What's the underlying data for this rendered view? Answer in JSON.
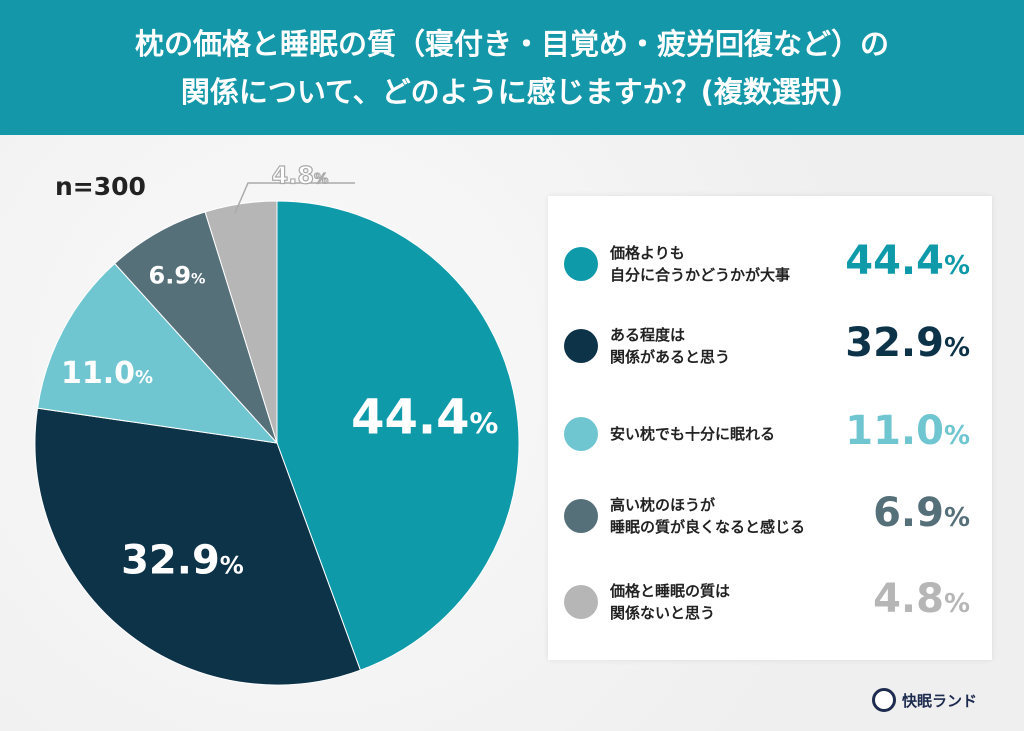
{
  "header": {
    "line1": "枕の価格と睡眠の質（寝付き・目覚め・疲労回復など）の",
    "line2": "関係について、どのように感じますか？(複数選択)"
  },
  "sample": "n=300",
  "brand": "快眠ランド",
  "chart_data": {
    "type": "pie",
    "title": "枕の価格と睡眠の質（寝付き・目覚め・疲労回復など）の関係について、どのように感じますか？(複数選択)",
    "start": "top-clockwise",
    "legend_position": "right",
    "slices": [
      {
        "label": "価格よりも\n自分に合うかどうかが大事",
        "value": 44.4,
        "display": "44.4",
        "color": "#0f9aaa"
      },
      {
        "label": "ある程度は\n関係があると思う",
        "value": 32.9,
        "display": "32.9",
        "color": "#0d3349"
      },
      {
        "label": "安い枕でも十分に眠れる",
        "value": 11.0,
        "display": "11.0",
        "color": "#6fc6d1"
      },
      {
        "label": "高い枕のほうが\n睡眠の質が良くなると感じる",
        "value": 6.9,
        "display": "6.9",
        "color": "#56707a"
      },
      {
        "label": "価格と睡眠の質は\n関係ないと思う",
        "value": 4.8,
        "display": "4.8",
        "color": "#b6b6b6"
      }
    ],
    "unit": "%"
  }
}
